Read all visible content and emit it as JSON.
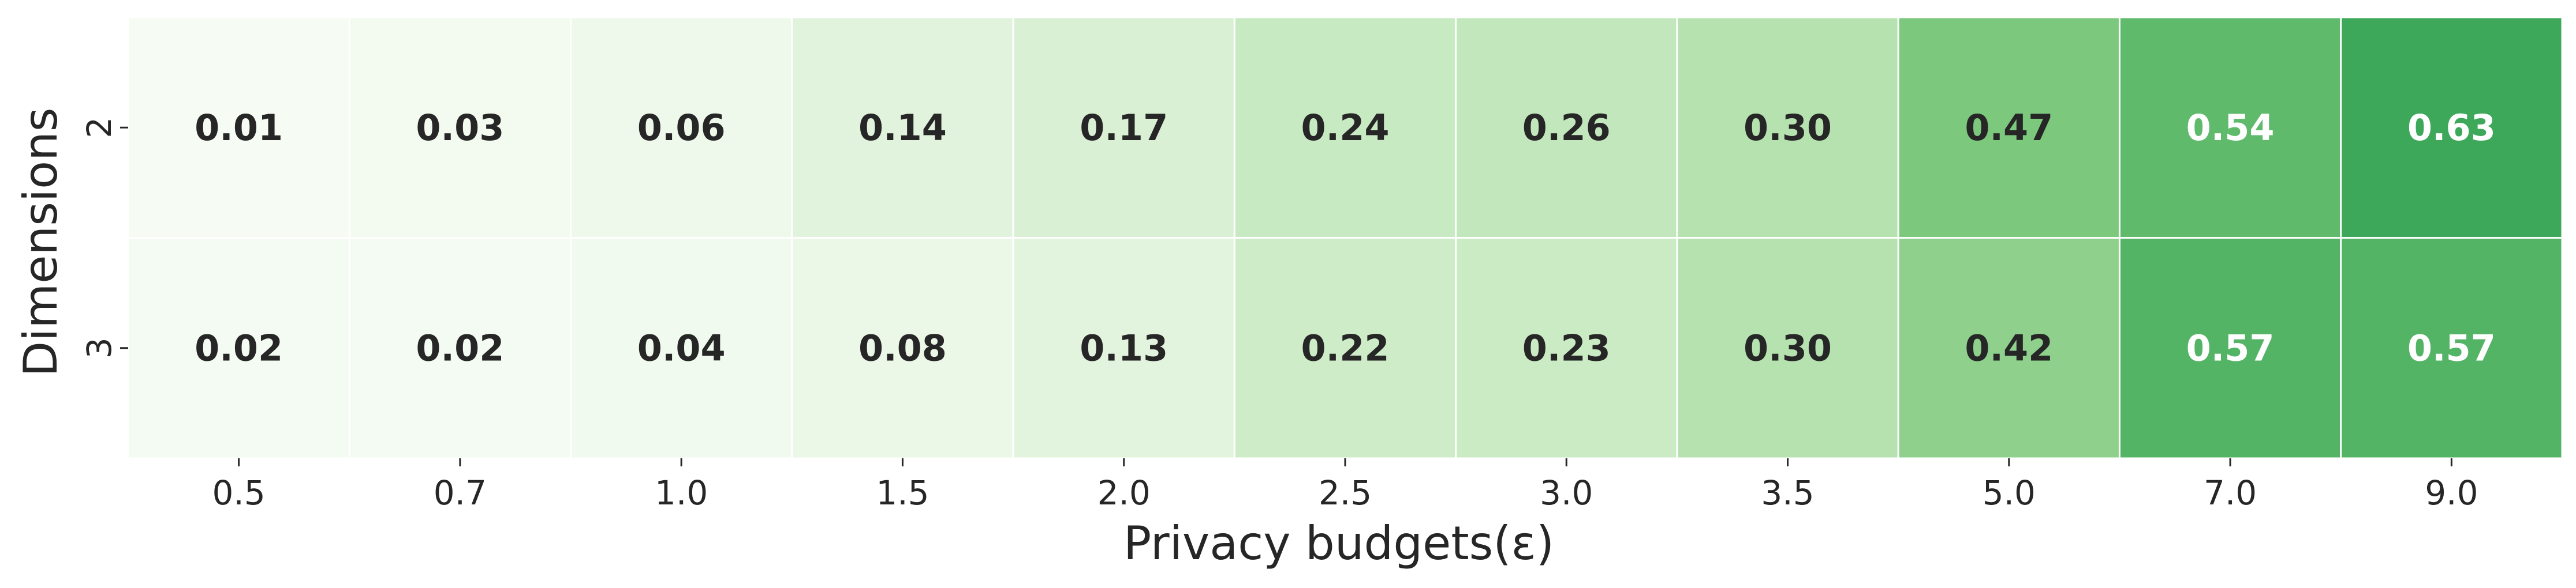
{
  "chart_data": {
    "type": "heatmap",
    "xlabel": "Privacy budgets(ε)",
    "ylabel": "Dimensions",
    "x_categories": [
      "0.5",
      "0.7",
      "1.0",
      "1.5",
      "2.0",
      "2.5",
      "3.0",
      "3.5",
      "5.0",
      "7.0",
      "9.0"
    ],
    "y_categories": [
      "2",
      "3"
    ],
    "values": [
      [
        0.01,
        0.03,
        0.06,
        0.14,
        0.17,
        0.24,
        0.26,
        0.3,
        0.47,
        0.54,
        0.63
      ],
      [
        0.02,
        0.02,
        0.04,
        0.08,
        0.13,
        0.22,
        0.23,
        0.3,
        0.42,
        0.57,
        0.57
      ]
    ],
    "value_labels": [
      [
        "0.01",
        "0.03",
        "0.06",
        "0.14",
        "0.17",
        "0.24",
        "0.26",
        "0.30",
        "0.47",
        "0.54",
        "0.63"
      ],
      [
        "0.02",
        "0.02",
        "0.04",
        "0.08",
        "0.13",
        "0.22",
        "0.23",
        "0.30",
        "0.42",
        "0.57",
        "0.57"
      ]
    ],
    "colormap": "Greens",
    "value_range": [
      0,
      0.63
    ],
    "colorbar": false,
    "grid": false,
    "colors": {
      "low": "#f7fcf5",
      "high": "#3fa95d",
      "cell_border": "#ffffff",
      "text_dark": "#262626",
      "text_light": "#ffffff"
    }
  }
}
